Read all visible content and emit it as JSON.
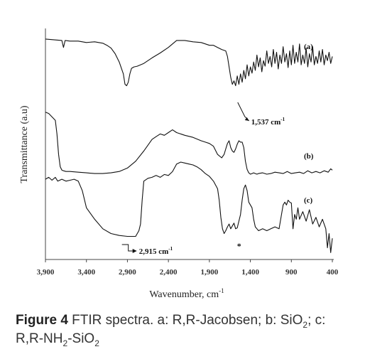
{
  "chart_data": {
    "type": "line",
    "xlabel": "Wavenumber, cm",
    "xlabel_sup": "-1",
    "ylabel": "Transmittance (a.u)",
    "xlim": [
      3900,
      400
    ],
    "x_reversed": true,
    "x_ticks": [
      3900,
      3400,
      2900,
      2400,
      1900,
      1400,
      900,
      400
    ],
    "x_tick_labels": [
      "3,900",
      "3,400",
      "2,900",
      "2,400",
      "1,900",
      "1,400",
      "900",
      "400"
    ],
    "grid": false,
    "series": [
      {
        "name": "(a)",
        "x": [
          3900,
          3800,
          3700,
          3680,
          3660,
          3600,
          3500,
          3400,
          3300,
          3200,
          3150,
          3100,
          3050,
          3000,
          2950,
          2930,
          2910,
          2890,
          2870,
          2850,
          2820,
          2780,
          2700,
          2600,
          2500,
          2400,
          2300,
          2200,
          2100,
          2000,
          1900,
          1850,
          1800,
          1750,
          1700,
          1680,
          1660,
          1640,
          1620,
          1600,
          1580,
          1560,
          1540,
          1520,
          1500,
          1480,
          1460,
          1440,
          1420,
          1400,
          1380,
          1360,
          1340,
          1320,
          1300,
          1280,
          1260,
          1240,
          1220,
          1200,
          1180,
          1160,
          1140,
          1120,
          1100,
          1080,
          1060,
          1040,
          1020,
          1000,
          980,
          960,
          940,
          920,
          900,
          880,
          860,
          840,
          820,
          800,
          780,
          760,
          740,
          720,
          700,
          680,
          660,
          640,
          620,
          600,
          580,
          560,
          540,
          520,
          500,
          480,
          460,
          440,
          420,
          400
        ],
        "y": [
          0.95,
          0.94,
          0.93,
          0.83,
          0.93,
          0.92,
          0.92,
          0.9,
          0.91,
          0.89,
          0.86,
          0.82,
          0.74,
          0.62,
          0.45,
          0.3,
          0.28,
          0.33,
          0.45,
          0.53,
          0.55,
          0.56,
          0.6,
          0.68,
          0.75,
          0.83,
          0.93,
          0.93,
          0.91,
          0.9,
          0.86,
          0.86,
          0.83,
          0.8,
          0.78,
          0.7,
          0.55,
          0.4,
          0.3,
          0.35,
          0.28,
          0.42,
          0.3,
          0.45,
          0.33,
          0.5,
          0.38,
          0.58,
          0.42,
          0.55,
          0.46,
          0.62,
          0.5,
          0.72,
          0.55,
          0.68,
          0.48,
          0.64,
          0.56,
          0.78,
          0.6,
          0.7,
          0.55,
          0.8,
          0.6,
          0.76,
          0.52,
          0.72,
          0.6,
          0.84,
          0.62,
          0.74,
          0.54,
          0.78,
          0.58,
          0.86,
          0.6,
          0.76,
          0.62,
          0.88,
          0.58,
          0.72,
          0.6,
          0.82,
          0.55,
          0.74,
          0.62,
          0.84,
          0.58,
          0.7,
          0.6,
          0.78,
          0.62,
          0.8,
          0.58,
          0.72,
          0.64,
          0.76,
          0.6,
          0.7
        ]
      },
      {
        "name": "(b)",
        "x": [
          3900,
          3860,
          3820,
          3780,
          3760,
          3740,
          3720,
          3700,
          3680,
          3650,
          3600,
          3500,
          3400,
          3300,
          3200,
          3100,
          3000,
          2900,
          2800,
          2700,
          2600,
          2550,
          2500,
          2450,
          2400,
          2350,
          2300,
          2200,
          2100,
          2000,
          1950,
          1900,
          1850,
          1800,
          1750,
          1720,
          1700,
          1680,
          1660,
          1640,
          1620,
          1600,
          1580,
          1560,
          1540,
          1520,
          1500,
          1480,
          1460,
          1440,
          1420,
          1400,
          1380,
          1360,
          1340,
          1320,
          1300,
          1250,
          1200,
          1150,
          1100,
          1050,
          1000,
          950,
          900,
          850,
          800,
          750,
          700,
          650,
          600,
          550,
          500,
          450,
          420,
          400
        ],
        "y": [
          0.92,
          0.9,
          0.85,
          0.8,
          0.6,
          0.3,
          0.12,
          0.07,
          0.06,
          0.05,
          0.05,
          0.04,
          0.03,
          0.02,
          0.02,
          0.03,
          0.05,
          0.1,
          0.2,
          0.35,
          0.52,
          0.56,
          0.6,
          0.58,
          0.62,
          0.66,
          0.62,
          0.58,
          0.55,
          0.5,
          0.48,
          0.46,
          0.42,
          0.3,
          0.25,
          0.3,
          0.38,
          0.46,
          0.5,
          0.4,
          0.35,
          0.33,
          0.38,
          0.45,
          0.5,
          0.48,
          0.48,
          0.4,
          0.2,
          0.08,
          0.03,
          0.01,
          0.02,
          0.03,
          0.02,
          0.01,
          0.02,
          0.03,
          0.01,
          0.02,
          0.04,
          0.03,
          0.02,
          0.05,
          0.02,
          0.03,
          0.04,
          0.02,
          0.06,
          0.03,
          0.05,
          0.03,
          0.06,
          0.04,
          0.09,
          0.07
        ]
      },
      {
        "name": "(c)",
        "x": [
          3900,
          3860,
          3820,
          3780,
          3750,
          3700,
          3650,
          3600,
          3550,
          3500,
          3450,
          3400,
          3300,
          3200,
          3100,
          3000,
          2900,
          2850,
          2800,
          2760,
          2740,
          2720,
          2700,
          2650,
          2600,
          2550,
          2500,
          2450,
          2400,
          2350,
          2300,
          2250,
          2200,
          2150,
          2100,
          2050,
          2000,
          1950,
          1900,
          1850,
          1800,
          1780,
          1760,
          1740,
          1720,
          1700,
          1680,
          1660,
          1640,
          1620,
          1600,
          1580,
          1560,
          1540,
          1520,
          1500,
          1480,
          1460,
          1440,
          1420,
          1400,
          1380,
          1360,
          1340,
          1320,
          1300,
          1250,
          1200,
          1150,
          1100,
          1050,
          1000,
          980,
          960,
          940,
          920,
          900,
          880,
          860,
          840,
          820,
          800,
          760,
          720,
          680,
          640,
          600,
          560,
          520,
          480,
          460,
          440,
          420,
          400
        ],
        "y": [
          0.82,
          0.84,
          0.81,
          0.84,
          0.8,
          0.82,
          0.8,
          0.81,
          0.82,
          0.8,
          0.7,
          0.52,
          0.4,
          0.3,
          0.25,
          0.23,
          0.22,
          0.22,
          0.22,
          0.28,
          0.35,
          0.6,
          0.8,
          0.83,
          0.84,
          0.86,
          0.84,
          0.87,
          0.86,
          0.9,
          0.98,
          1.0,
          0.99,
          0.98,
          0.97,
          0.95,
          0.92,
          0.88,
          0.85,
          0.8,
          0.72,
          0.6,
          0.42,
          0.3,
          0.25,
          0.28,
          0.32,
          0.35,
          0.3,
          0.33,
          0.36,
          0.3,
          0.31,
          0.38,
          0.45,
          0.6,
          0.72,
          0.76,
          0.7,
          0.58,
          0.55,
          0.52,
          0.4,
          0.32,
          0.3,
          0.28,
          0.3,
          0.28,
          0.3,
          0.32,
          0.3,
          0.55,
          0.58,
          0.55,
          0.6,
          0.58,
          0.57,
          0.3,
          0.45,
          0.4,
          0.52,
          0.4,
          0.48,
          0.38,
          0.5,
          0.35,
          0.42,
          0.32,
          0.4,
          0.3,
          0.1,
          0.25,
          0.05,
          0.2
        ]
      }
    ],
    "series_labels": [
      "(a)",
      "(b)",
      "(c)"
    ],
    "annotations": [
      {
        "text": "1,537 cm",
        "sup": "-1",
        "series": "(a)",
        "x": 1537
      },
      {
        "text": "2,915 cm",
        "sup": "-1",
        "series": "(c)",
        "x": 2915
      },
      {
        "text": "*",
        "series": "(c)",
        "x": 1537
      }
    ]
  },
  "caption": {
    "label": "Figure 4",
    "text_1": " FTIR spectra. a: R,R-Jacobsen; b: SiO",
    "sub_1": "2",
    "text_2": "; c: R,R-NH",
    "sub_2": "2",
    "text_3": "-SiO",
    "sub_3": "2"
  }
}
